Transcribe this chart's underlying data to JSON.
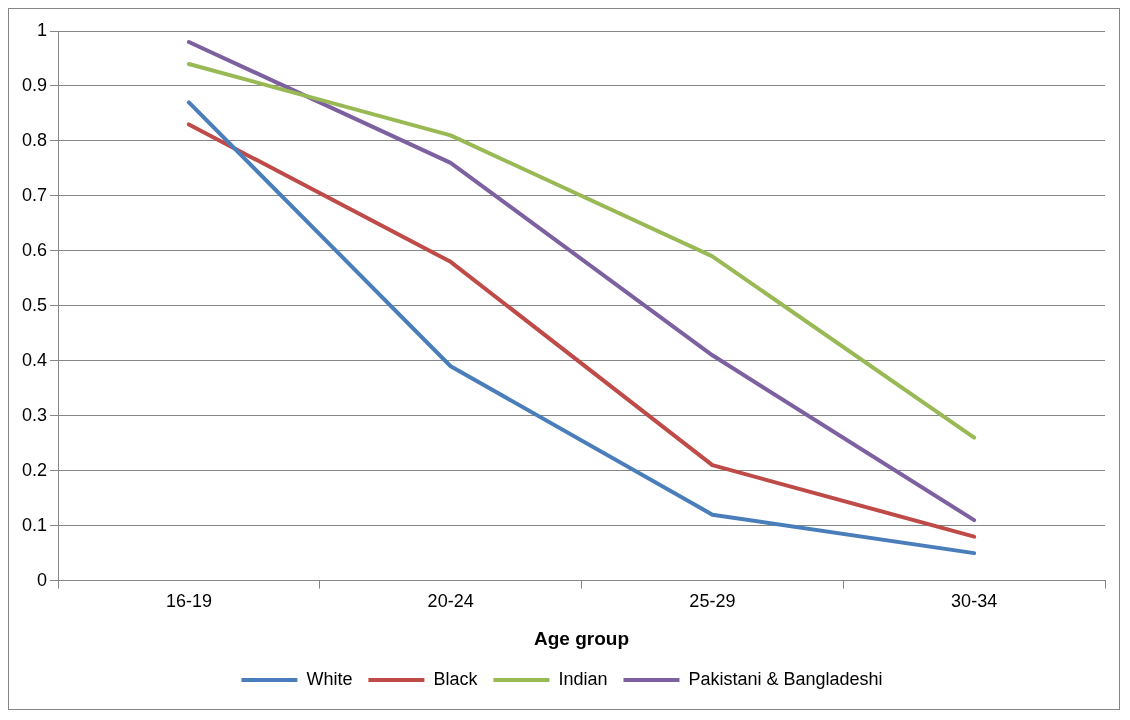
{
  "chart_data": {
    "type": "line",
    "xlabel": "Age group",
    "categories": [
      "16-19",
      "20-24",
      "25-29",
      "30-34"
    ],
    "series": [
      {
        "name": "White",
        "color": "#4a7ebb",
        "values": [
          0.87,
          0.39,
          0.12,
          0.05
        ]
      },
      {
        "name": "Black",
        "color": "#be4b48",
        "values": [
          0.83,
          0.58,
          0.21,
          0.08
        ]
      },
      {
        "name": "Indian",
        "color": "#98b954",
        "values": [
          0.94,
          0.81,
          0.59,
          0.26
        ]
      },
      {
        "name": "Pakistani & Bangladeshi",
        "color": "#7d60a0",
        "values": [
          0.98,
          0.76,
          0.41,
          0.11
        ]
      }
    ],
    "ylim": [
      0,
      1
    ],
    "yticks": [
      0,
      0.1,
      0.2,
      0.3,
      0.4,
      0.5,
      0.6,
      0.7,
      0.8,
      0.9,
      1
    ],
    "grid": "y",
    "legend": "bottom",
    "marker": "none",
    "line_style": "solid"
  }
}
